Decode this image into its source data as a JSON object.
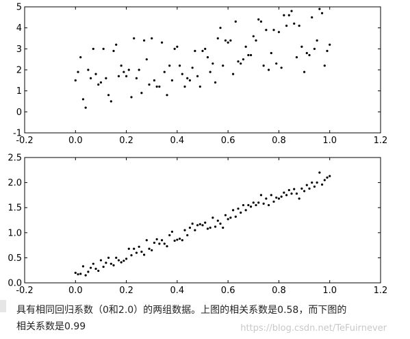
{
  "chart_data": [
    {
      "type": "scatter",
      "xlim": [
        -0.2,
        1.2
      ],
      "ylim": [
        -1,
        5
      ],
      "xticks": [
        "-0.2",
        "0.0",
        "0.2",
        "0.4",
        "0.6",
        "0.8",
        "1.0",
        "1.2"
      ],
      "yticks": [
        "-1",
        "0",
        "1",
        "2",
        "3",
        "4",
        "5"
      ],
      "grid": false,
      "series": [
        {
          "color": "#000000",
          "points": [
            [
              0.0,
              1.5
            ],
            [
              0.01,
              1.9
            ],
            [
              0.02,
              2.6
            ],
            [
              0.03,
              0.6
            ],
            [
              0.04,
              0.2
            ],
            [
              0.05,
              2.0
            ],
            [
              0.06,
              1.6
            ],
            [
              0.07,
              3.0
            ],
            [
              0.08,
              1.8
            ],
            [
              0.09,
              1.3
            ],
            [
              0.1,
              1.4
            ],
            [
              0.11,
              3.0
            ],
            [
              0.12,
              1.6
            ],
            [
              0.13,
              0.8
            ],
            [
              0.14,
              0.5
            ],
            [
              0.15,
              2.9
            ],
            [
              0.16,
              3.2
            ],
            [
              0.17,
              1.7
            ],
            [
              0.18,
              2.2
            ],
            [
              0.19,
              1.9
            ],
            [
              0.2,
              1.7
            ],
            [
              0.21,
              2.0
            ],
            [
              0.22,
              0.7
            ],
            [
              0.23,
              3.5
            ],
            [
              0.24,
              1.6
            ],
            [
              0.25,
              2.0
            ],
            [
              0.26,
              0.9
            ],
            [
              0.27,
              3.4
            ],
            [
              0.28,
              2.5
            ],
            [
              0.29,
              1.3
            ],
            [
              0.3,
              3.5
            ],
            [
              0.31,
              1.5
            ],
            [
              0.32,
              1.2
            ],
            [
              0.33,
              1.2
            ],
            [
              0.34,
              3.3
            ],
            [
              0.35,
              1.9
            ],
            [
              0.36,
              0.8
            ],
            [
              0.37,
              2.2
            ],
            [
              0.38,
              1.5
            ],
            [
              0.39,
              3.0
            ],
            [
              0.4,
              3.1
            ],
            [
              0.41,
              2.2
            ],
            [
              0.42,
              1.8
            ],
            [
              0.43,
              1.2
            ],
            [
              0.44,
              1.6
            ],
            [
              0.45,
              1.5
            ],
            [
              0.46,
              2.1
            ],
            [
              0.47,
              2.9
            ],
            [
              0.48,
              1.7
            ],
            [
              0.49,
              1.2
            ],
            [
              0.5,
              2.9
            ],
            [
              0.51,
              3.0
            ],
            [
              0.52,
              2.6
            ],
            [
              0.53,
              1.9
            ],
            [
              0.54,
              2.3
            ],
            [
              0.55,
              1.4
            ],
            [
              0.56,
              3.5
            ],
            [
              0.57,
              4.0
            ],
            [
              0.58,
              2.2
            ],
            [
              0.59,
              3.4
            ],
            [
              0.6,
              3.3
            ],
            [
              0.61,
              3.4
            ],
            [
              0.62,
              1.8
            ],
            [
              0.63,
              4.3
            ],
            [
              0.64,
              2.4
            ],
            [
              0.65,
              2.3
            ],
            [
              0.66,
              2.5
            ],
            [
              0.67,
              3.1
            ],
            [
              0.68,
              2.7
            ],
            [
              0.69,
              2.7
            ],
            [
              0.7,
              3.6
            ],
            [
              0.71,
              3.4
            ],
            [
              0.72,
              4.4
            ],
            [
              0.73,
              4.3
            ],
            [
              0.74,
              2.2
            ],
            [
              0.75,
              3.9
            ],
            [
              0.76,
              2.0
            ],
            [
              0.77,
              2.8
            ],
            [
              0.78,
              3.9
            ],
            [
              0.79,
              2.3
            ],
            [
              0.8,
              3.8
            ],
            [
              0.81,
              2.1
            ],
            [
              0.82,
              4.6
            ],
            [
              0.83,
              4.1
            ],
            [
              0.84,
              4.6
            ],
            [
              0.85,
              4.8
            ],
            [
              0.86,
              4.2
            ],
            [
              0.87,
              2.6
            ],
            [
              0.88,
              4.1
            ],
            [
              0.89,
              3.1
            ],
            [
              0.9,
              1.9
            ],
            [
              0.91,
              2.8
            ],
            [
              0.92,
              2.7
            ],
            [
              0.93,
              4.5
            ],
            [
              0.94,
              3.0
            ],
            [
              0.95,
              3.4
            ],
            [
              0.96,
              4.9
            ],
            [
              0.97,
              4.7
            ],
            [
              0.98,
              2.2
            ],
            [
              0.99,
              2.9
            ],
            [
              1.0,
              3.2
            ]
          ]
        }
      ]
    },
    {
      "type": "scatter",
      "xlim": [
        -0.2,
        1.2
      ],
      "ylim": [
        0.0,
        2.5
      ],
      "xticks": [
        "-0.2",
        "0.0",
        "0.2",
        "0.4",
        "0.6",
        "0.8",
        "1.0",
        "1.2"
      ],
      "yticks": [
        "0.0",
        "0.5",
        "1.0",
        "1.5",
        "2.0",
        "2.5"
      ],
      "grid": false,
      "series": [
        {
          "color": "#000000",
          "points": [
            [
              0.0,
              0.2
            ],
            [
              0.01,
              0.17
            ],
            [
              0.02,
              0.18
            ],
            [
              0.03,
              0.33
            ],
            [
              0.04,
              0.15
            ],
            [
              0.05,
              0.22
            ],
            [
              0.06,
              0.3
            ],
            [
              0.07,
              0.38
            ],
            [
              0.08,
              0.28
            ],
            [
              0.09,
              0.24
            ],
            [
              0.1,
              0.45
            ],
            [
              0.11,
              0.32
            ],
            [
              0.12,
              0.4
            ],
            [
              0.13,
              0.5
            ],
            [
              0.14,
              0.38
            ],
            [
              0.15,
              0.35
            ],
            [
              0.16,
              0.5
            ],
            [
              0.17,
              0.45
            ],
            [
              0.18,
              0.41
            ],
            [
              0.19,
              0.44
            ],
            [
              0.2,
              0.48
            ],
            [
              0.21,
              0.68
            ],
            [
              0.22,
              0.55
            ],
            [
              0.23,
              0.68
            ],
            [
              0.24,
              0.6
            ],
            [
              0.25,
              0.72
            ],
            [
              0.26,
              0.62
            ],
            [
              0.27,
              0.56
            ],
            [
              0.28,
              0.85
            ],
            [
              0.29,
              0.68
            ],
            [
              0.3,
              0.65
            ],
            [
              0.31,
              0.8
            ],
            [
              0.32,
              0.87
            ],
            [
              0.33,
              0.78
            ],
            [
              0.34,
              0.85
            ],
            [
              0.35,
              0.78
            ],
            [
              0.36,
              0.73
            ],
            [
              0.37,
              0.95
            ],
            [
              0.38,
              1.02
            ],
            [
              0.39,
              0.84
            ],
            [
              0.4,
              0.86
            ],
            [
              0.41,
              0.88
            ],
            [
              0.42,
              0.85
            ],
            [
              0.43,
              1.05
            ],
            [
              0.44,
              0.95
            ],
            [
              0.45,
              1.1
            ],
            [
              0.46,
              1.18
            ],
            [
              0.47,
              1.05
            ],
            [
              0.48,
              1.15
            ],
            [
              0.49,
              1.17
            ],
            [
              0.5,
              1.15
            ],
            [
              0.51,
              1.2
            ],
            [
              0.52,
              1.08
            ],
            [
              0.53,
              1.1
            ],
            [
              0.54,
              1.3
            ],
            [
              0.55,
              1.12
            ],
            [
              0.56,
              1.24
            ],
            [
              0.57,
              1.18
            ],
            [
              0.58,
              1.1
            ],
            [
              0.59,
              1.35
            ],
            [
              0.6,
              1.27
            ],
            [
              0.61,
              1.3
            ],
            [
              0.62,
              1.45
            ],
            [
              0.63,
              1.32
            ],
            [
              0.64,
              1.48
            ],
            [
              0.65,
              1.4
            ],
            [
              0.66,
              1.55
            ],
            [
              0.67,
              1.45
            ],
            [
              0.68,
              1.55
            ],
            [
              0.69,
              1.52
            ],
            [
              0.7,
              1.6
            ],
            [
              0.71,
              1.55
            ],
            [
              0.72,
              1.6
            ],
            [
              0.73,
              1.75
            ],
            [
              0.74,
              1.58
            ],
            [
              0.75,
              1.68
            ],
            [
              0.76,
              1.55
            ],
            [
              0.77,
              1.75
            ],
            [
              0.78,
              1.62
            ],
            [
              0.79,
              1.7
            ],
            [
              0.8,
              1.68
            ],
            [
              0.81,
              1.72
            ],
            [
              0.82,
              1.8
            ],
            [
              0.83,
              1.75
            ],
            [
              0.84,
              1.85
            ],
            [
              0.85,
              1.78
            ],
            [
              0.86,
              1.87
            ],
            [
              0.87,
              1.78
            ],
            [
              0.88,
              1.68
            ],
            [
              0.89,
              1.88
            ],
            [
              0.9,
              1.83
            ],
            [
              0.91,
              1.95
            ],
            [
              0.92,
              1.88
            ],
            [
              0.93,
              2.0
            ],
            [
              0.94,
              1.92
            ],
            [
              0.95,
              2.0
            ],
            [
              0.96,
              2.2
            ],
            [
              0.97,
              1.96
            ],
            [
              0.98,
              2.05
            ],
            [
              0.99,
              2.1
            ],
            [
              1.0,
              2.13
            ]
          ]
        }
      ]
    }
  ],
  "caption": {
    "line1": "具有相同回归系数（0和2.0）的两组数据。上图的相关系数是0.58，而下图的",
    "line2": "相关系数是0.99"
  },
  "watermark": "https://blog.csdn.net/TeFuirnever"
}
